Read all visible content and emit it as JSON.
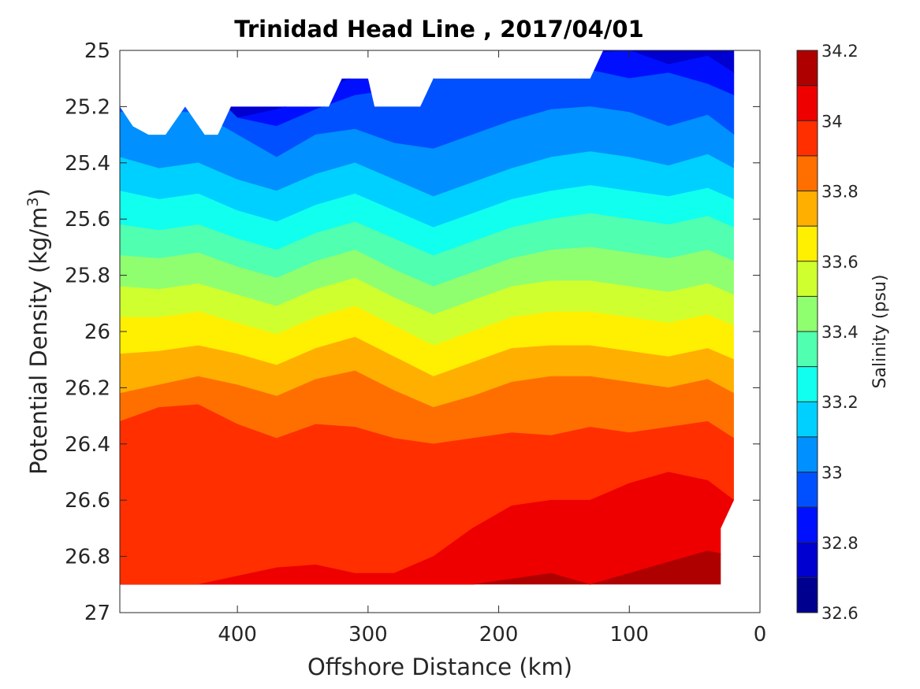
{
  "chart_data": {
    "type": "heatmap",
    "title": "Trinidad Head Line , 2017/04/01",
    "xlabel": "Offshore Distance (km)",
    "ylabel": "Potential Density (kg/m",
    "ylabel_sup": "3",
    "ylabel_close": ")",
    "x_ticks": [
      "400",
      "300",
      "200",
      "100",
      "0"
    ],
    "x_tick_values": [
      400,
      300,
      200,
      100,
      0
    ],
    "y_ticks": [
      "25",
      "25.2",
      "25.4",
      "25.6",
      "25.8",
      "26",
      "26.2",
      "26.4",
      "26.6",
      "26.8",
      "27"
    ],
    "y_tick_values": [
      25,
      25.2,
      25.4,
      25.6,
      25.8,
      26,
      26.2,
      26.4,
      26.6,
      26.8,
      27
    ],
    "xlim": [
      490,
      0
    ],
    "x_reversed": true,
    "ylim": [
      25,
      27
    ],
    "y_reversed": true,
    "colorbar": {
      "label": "Salinity (psu)",
      "ticks": [
        "34.2",
        "34",
        "33.8",
        "33.6",
        "33.4",
        "33.2",
        "33",
        "32.8",
        "32.6"
      ],
      "tick_values": [
        34.2,
        34.0,
        33.8,
        33.6,
        33.4,
        33.2,
        33.0,
        32.8,
        32.6
      ],
      "range": [
        32.6,
        34.2
      ],
      "levels": [
        32.6,
        32.7,
        32.8,
        32.9,
        33.0,
        33.1,
        33.2,
        33.3,
        33.4,
        33.5,
        33.6,
        33.7,
        33.8,
        33.9,
        34.0,
        34.1,
        34.2
      ],
      "colors": [
        "#00008f",
        "#0000d0",
        "#0010ff",
        "#0050ff",
        "#0090ff",
        "#00d0ff",
        "#10ffef",
        "#50ffaf",
        "#90ff6f",
        "#d0ff2f",
        "#ffef00",
        "#ffaf00",
        "#ff6f00",
        "#ff2f00",
        "#ef0000",
        "#af0000"
      ]
    },
    "contour_x_km": [
      490,
      460,
      430,
      400,
      370,
      340,
      310,
      280,
      250,
      220,
      190,
      160,
      130,
      100,
      70,
      40,
      20
    ],
    "contour_boundaries": [
      {
        "salinity": 32.8,
        "y": [
          25.1,
          25.1,
          25.1,
          25.24,
          25.21,
          25.16,
          25.09,
          25.05,
          25.04,
          25.04,
          25.03,
          25.02,
          25.01,
          25.0,
          25.05,
          25.02,
          25.08
        ]
      },
      {
        "salinity": 32.9,
        "y": [
          25.1,
          25.1,
          25.1,
          25.24,
          25.27,
          25.21,
          25.16,
          25.14,
          25.1,
          25.07,
          25.06,
          25.08,
          25.07,
          25.1,
          25.08,
          25.12,
          25.16
        ]
      },
      {
        "salinity": 33.0,
        "y": [
          25.22,
          25.22,
          25.22,
          25.3,
          25.38,
          25.3,
          25.28,
          25.33,
          25.35,
          25.3,
          25.25,
          25.21,
          25.2,
          25.22,
          25.27,
          25.23,
          25.3
        ]
      },
      {
        "salinity": 33.1,
        "y": [
          25.38,
          25.42,
          25.4,
          25.46,
          25.5,
          25.44,
          25.4,
          25.46,
          25.52,
          25.47,
          25.42,
          25.38,
          25.36,
          25.38,
          25.41,
          25.37,
          25.42
        ]
      },
      {
        "salinity": 33.2,
        "y": [
          25.5,
          25.53,
          25.51,
          25.57,
          25.61,
          25.55,
          25.51,
          25.57,
          25.63,
          25.58,
          25.53,
          25.5,
          25.48,
          25.5,
          25.52,
          25.49,
          25.53
        ]
      },
      {
        "salinity": 33.3,
        "y": [
          25.62,
          25.64,
          25.62,
          25.67,
          25.71,
          25.65,
          25.61,
          25.67,
          25.73,
          25.68,
          25.63,
          25.6,
          25.58,
          25.6,
          25.62,
          25.59,
          25.63
        ]
      },
      {
        "salinity": 33.4,
        "y": [
          25.73,
          25.74,
          25.72,
          25.77,
          25.81,
          25.75,
          25.71,
          25.78,
          25.84,
          25.79,
          25.74,
          25.71,
          25.7,
          25.72,
          25.74,
          25.71,
          25.75
        ]
      },
      {
        "salinity": 33.5,
        "y": [
          25.84,
          25.85,
          25.83,
          25.87,
          25.91,
          25.85,
          25.81,
          25.88,
          25.94,
          25.89,
          25.84,
          25.82,
          25.82,
          25.84,
          25.86,
          25.83,
          25.87
        ]
      },
      {
        "salinity": 33.6,
        "y": [
          25.95,
          25.95,
          25.93,
          25.97,
          26.01,
          25.95,
          25.91,
          25.98,
          26.05,
          26.0,
          25.95,
          25.93,
          25.93,
          25.95,
          25.97,
          25.94,
          25.98
        ]
      },
      {
        "salinity": 33.7,
        "y": [
          26.08,
          26.07,
          26.05,
          26.08,
          26.12,
          26.06,
          26.02,
          26.09,
          26.16,
          26.11,
          26.06,
          26.05,
          26.05,
          26.07,
          26.09,
          26.06,
          26.1
        ]
      },
      {
        "salinity": 33.8,
        "y": [
          26.22,
          26.19,
          26.16,
          26.19,
          26.23,
          26.17,
          26.14,
          26.21,
          26.27,
          26.23,
          26.18,
          26.16,
          26.16,
          26.18,
          26.2,
          26.17,
          26.22
        ]
      },
      {
        "salinity": 33.9,
        "y": [
          26.32,
          26.27,
          26.26,
          26.33,
          26.38,
          26.33,
          26.34,
          26.38,
          26.4,
          26.38,
          26.36,
          26.37,
          26.34,
          26.36,
          26.34,
          26.32,
          26.38
        ]
      },
      {
        "salinity": 34.0,
        "y": [
          26.9,
          26.9,
          26.9,
          26.87,
          26.84,
          26.83,
          26.86,
          26.86,
          26.8,
          26.7,
          26.62,
          26.6,
          26.6,
          26.54,
          26.5,
          26.53,
          26.6
        ]
      },
      {
        "salinity": 34.1,
        "y": [
          26.9,
          26.9,
          26.9,
          26.9,
          26.9,
          26.9,
          26.9,
          26.9,
          26.9,
          26.9,
          26.88,
          26.86,
          26.9,
          26.86,
          26.82,
          26.78,
          26.8
        ]
      }
    ],
    "data_mask": {
      "top_edge_x_km": [
        490,
        480,
        468,
        455,
        440,
        425,
        415,
        405,
        330,
        320,
        315,
        305,
        300,
        295,
        260,
        250,
        240,
        130,
        120,
        110,
        100,
        80,
        60,
        40,
        30,
        20,
        10
      ],
      "top_edge_y": [
        25.2,
        25.27,
        25.3,
        25.3,
        25.2,
        25.3,
        25.3,
        25.2,
        25.2,
        25.1,
        25.1,
        25.1,
        25.1,
        25.2,
        25.2,
        25.1,
        25.1,
        25.1,
        25.0,
        25.0,
        25.0,
        25.0,
        25.0,
        25.0,
        25.0,
        25.0,
        25.0
      ],
      "right_edge_x_km": [
        10,
        10,
        20,
        20,
        20,
        30,
        30
      ],
      "right_edge_y": [
        25.0,
        25.3,
        25.4,
        26.0,
        26.6,
        26.7,
        26.9
      ],
      "bottom_y": 26.9
    }
  }
}
